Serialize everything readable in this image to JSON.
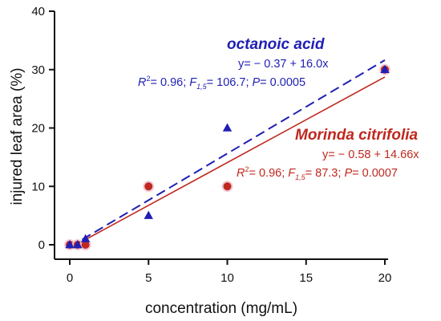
{
  "chart_data": {
    "type": "scatter",
    "xlabel": "concentration (mg/mL)",
    "ylabel": "injured leaf area (%)",
    "xlim": [
      -1,
      20.5
    ],
    "ylim": [
      -2.5,
      40
    ],
    "xticks": [
      0,
      5,
      10,
      15,
      20
    ],
    "yticks": [
      0,
      10,
      20,
      30,
      40
    ],
    "grid": false,
    "series": [
      {
        "name": "octanoic acid",
        "color": "#1f1fb4",
        "marker": "triangle",
        "points": [
          {
            "x": 0,
            "y": 0
          },
          {
            "x": 0.5,
            "y": 0
          },
          {
            "x": 1,
            "y": 1
          },
          {
            "x": 5,
            "y": 5
          },
          {
            "x": 10,
            "y": 20
          },
          {
            "x": 20,
            "y": 30
          }
        ],
        "fit": {
          "intercept": -0.37,
          "slope": 16.0,
          "line_style": "dashed"
        },
        "equation": "y= − 0.37 + 16.0x",
        "stats": {
          "r2_prefix": "R",
          "r2_sup": "2",
          "r2_value": "= 0.96;",
          "f_prefix": "F",
          "f_sub": "1,5",
          "f_value": "= 106.7;",
          "p_text": "P",
          "p_value": "= 0.0005"
        }
      },
      {
        "name": "Morinda citrifolia",
        "color": "#c0281f",
        "marker": "circle",
        "points": [
          {
            "x": 0,
            "y": 0
          },
          {
            "x": 0.5,
            "y": 0
          },
          {
            "x": 1,
            "y": 0
          },
          {
            "x": 5,
            "y": 10
          },
          {
            "x": 10,
            "y": 10
          },
          {
            "x": 20,
            "y": 30
          }
        ],
        "fit": {
          "intercept": -0.58,
          "slope": 14.66,
          "line_style": "solid"
        },
        "equation": "y= − 0.58 + 14.66x",
        "stats": {
          "r2_prefix": "R",
          "r2_sup": "2",
          "r2_value": "= 0.96;",
          "f_prefix": "F",
          "f_sub": "1,5",
          "f_value": "= 87.3;",
          "p_text": "P",
          "p_value": "= 0.0007"
        }
      }
    ]
  }
}
